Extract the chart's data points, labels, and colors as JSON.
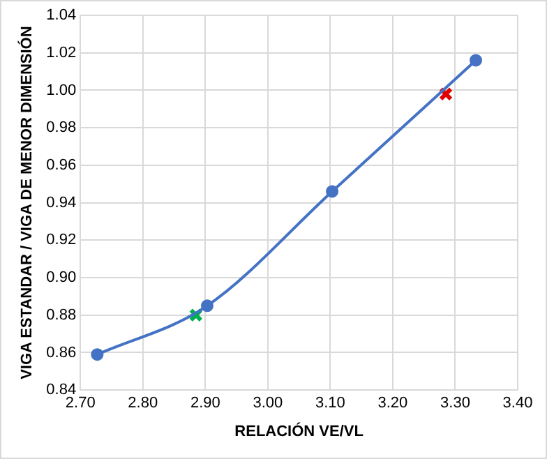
{
  "chart_data": {
    "type": "line",
    "xlabel": "RELACIÓN VE/VL",
    "ylabel": "VIGA ESTANDAR / VIGA DE MENOR DIMENSIÓN",
    "xlim": [
      2.7,
      3.4
    ],
    "ylim": [
      0.84,
      1.04
    ],
    "xticks": [
      {
        "value": 2.7,
        "label": "2.70"
      },
      {
        "value": 2.8,
        "label": "2.80"
      },
      {
        "value": 2.9,
        "label": "2.90"
      },
      {
        "value": 3.0,
        "label": "3.00"
      },
      {
        "value": 3.1,
        "label": "3.10"
      },
      {
        "value": 3.2,
        "label": "3.20"
      },
      {
        "value": 3.3,
        "label": "3.30"
      },
      {
        "value": 3.4,
        "label": "3.40"
      }
    ],
    "yticks": [
      {
        "value": 0.84,
        "label": "0.84"
      },
      {
        "value": 0.86,
        "label": "0.86"
      },
      {
        "value": 0.88,
        "label": "0.88"
      },
      {
        "value": 0.9,
        "label": "0.90"
      },
      {
        "value": 0.92,
        "label": "0.92"
      },
      {
        "value": 0.94,
        "label": "0.94"
      },
      {
        "value": 0.96,
        "label": "0.96"
      },
      {
        "value": 0.98,
        "label": "0.98"
      },
      {
        "value": 1.0,
        "label": "1.00"
      },
      {
        "value": 1.02,
        "label": "1.02"
      },
      {
        "value": 1.04,
        "label": "1.04"
      }
    ],
    "grid": true,
    "legend": false,
    "series": [
      {
        "color": "#4472c4",
        "marker": "circle",
        "x": [
          2.727,
          2.903,
          3.103,
          3.333
        ],
        "values": [
          0.859,
          0.885,
          0.946,
          1.016
        ]
      },
      {
        "type": "scatter",
        "color": "#00b050",
        "marker": "cross",
        "x": [
          2.885
        ],
        "values": [
          0.88
        ]
      },
      {
        "type": "scatter",
        "color": "#e00000",
        "marker": "cross",
        "x": [
          3.285
        ],
        "values": [
          0.998
        ]
      }
    ]
  }
}
